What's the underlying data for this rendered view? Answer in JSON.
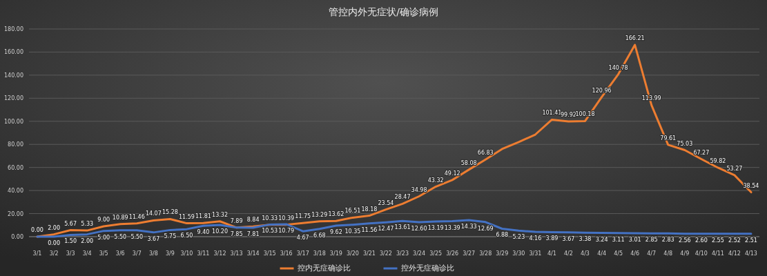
{
  "chart_data": {
    "type": "line",
    "title": "管控内外无症状/确诊病例",
    "categories": [
      "3/1",
      "3/2",
      "3/3",
      "3/4",
      "3/5",
      "3/6",
      "3/7",
      "3/8",
      "3/9",
      "3/10",
      "3/11",
      "3/12",
      "3/13",
      "3/14",
      "3/15",
      "3/16",
      "3/17",
      "3/18",
      "3/19",
      "3/20",
      "3/21",
      "3/22",
      "3/23",
      "3/24",
      "3/25",
      "3/26",
      "3/27",
      "3/28",
      "3/29",
      "3/30",
      "3/31",
      "4/1",
      "4/2",
      "4/3",
      "4/4",
      "4/5",
      "4/6",
      "4/7",
      "4/8",
      "4/9",
      "4/10",
      "4/11",
      "4/12",
      "4/13"
    ],
    "series": [
      {
        "name": "控内无症确诊比",
        "color": "#ed7d31",
        "values": [
          0.0,
          2.0,
          5.67,
          5.33,
          9.0,
          10.89,
          11.46,
          14.07,
          15.28,
          11.59,
          11.81,
          13.32,
          7.89,
          8.84,
          10.33,
          10.39,
          11.75,
          13.29,
          13.62,
          16.51,
          18.18,
          23.54,
          28.47,
          34.98,
          43.32,
          49.12,
          58.08,
          66.83,
          76.0,
          82.0,
          88.5,
          101.41,
          99.92,
          100.18,
          120.96,
          140.78,
          166.21,
          113.99,
          79.61,
          75.03,
          67.27,
          59.82,
          53.27,
          38.54
        ],
        "value_labels": [
          "0.00",
          "2.00",
          "5.67",
          "5.33",
          "9.00",
          "10.89",
          "11.46",
          "14.07",
          "15.28",
          "11.59",
          "11.81",
          "13.32",
          "7.89",
          "8.84",
          "10.33",
          "10.39",
          "11.75",
          "13.29",
          "13.62",
          "16.51",
          "18.18",
          "23.54",
          "28.47",
          "34.98",
          "43.32",
          "49.12",
          "58.08",
          "66.83",
          null,
          null,
          null,
          "101.41",
          "99.92",
          "100.18",
          "120.96",
          "140.78",
          "166.21",
          "113.99",
          "79.61",
          "75.03",
          "67.27",
          "59.82",
          "53.27",
          "38.54"
        ]
      },
      {
        "name": "控外无症确诊比",
        "color": "#4472c4",
        "values": [
          0.0,
          0.0,
          1.5,
          2.0,
          5.0,
          5.5,
          5.5,
          3.67,
          5.75,
          6.5,
          9.4,
          10.2,
          7.85,
          7.81,
          10.53,
          10.79,
          4.67,
          6.68,
          9.62,
          10.35,
          11.56,
          12.47,
          13.61,
          12.6,
          13.19,
          13.39,
          14.33,
          12.69,
          6.88,
          5.23,
          4.16,
          3.89,
          3.67,
          3.38,
          3.24,
          3.11,
          3.01,
          2.85,
          2.83,
          2.56,
          2.6,
          2.55,
          2.52,
          2.51
        ],
        "value_labels": [
          null,
          "0.00",
          "1.50",
          "2.00",
          "5.00",
          "5.50",
          "5.50",
          "3.67",
          "5.75",
          "6.50",
          "9.40",
          "10.20",
          "7.85",
          "7.81",
          "10.53",
          "10.79",
          "4.67",
          "6.68",
          "9.62",
          "10.35",
          "11.56",
          "12.47",
          "13.61",
          "12.60",
          "13.19",
          "13.39",
          "14.33",
          "12.69",
          "6.88",
          "5.23",
          "4.16",
          "3.89",
          "3.67",
          "3.38",
          "3.24",
          "3.11",
          "3.01",
          "2.85",
          "2.83",
          "2.56",
          "2.60",
          "2.55",
          "2.52",
          "2.51"
        ]
      }
    ],
    "ylim": [
      0,
      180
    ],
    "yticks": [
      {
        "value": 0,
        "label": "0.00"
      },
      {
        "value": 20,
        "label": "20.00"
      },
      {
        "value": 40,
        "label": "40.00"
      },
      {
        "value": 60,
        "label": "60.00"
      },
      {
        "value": 80,
        "label": "80.00"
      },
      {
        "value": 100,
        "label": "100.00"
      },
      {
        "value": 120,
        "label": "120.00"
      },
      {
        "value": 140,
        "label": "140.00"
      },
      {
        "value": 160,
        "label": "160.00"
      },
      {
        "value": 180,
        "label": "180.00"
      }
    ],
    "grid": "y",
    "legend": "bottom",
    "marker": "none",
    "line_style": "solid"
  }
}
